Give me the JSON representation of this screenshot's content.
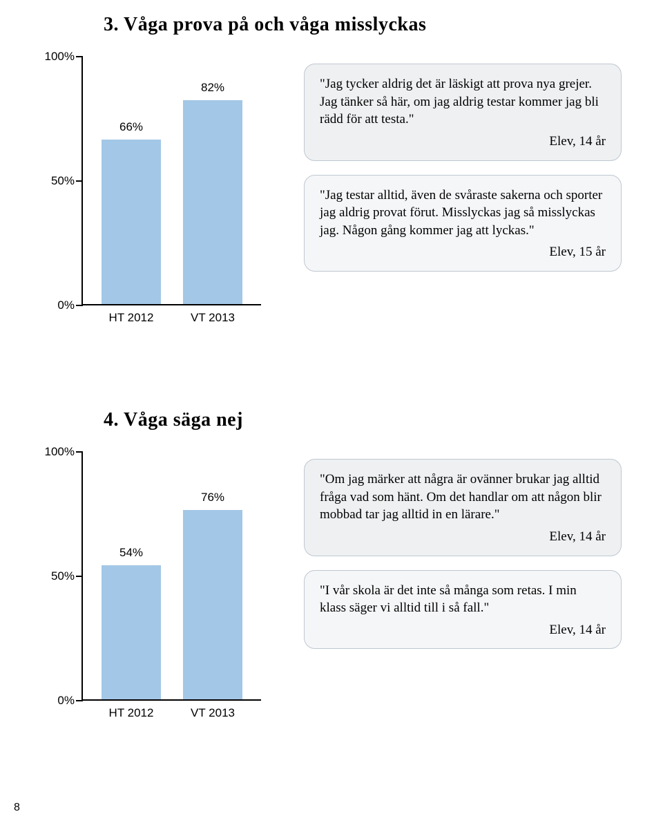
{
  "section1": {
    "heading": "3. Våga prova på och våga misslyckas",
    "chart": {
      "type": "bar",
      "ylim": [
        0,
        100
      ],
      "ytick_labels": [
        "100%",
        "50%",
        "0%"
      ],
      "ytick_values": [
        100,
        50,
        0
      ],
      "categories": [
        "HT 2012",
        "VT 2013"
      ],
      "values": [
        66,
        82
      ],
      "value_labels": [
        "66%",
        "82%"
      ],
      "bar_color": "#a3c7e6",
      "axis_color": "#000000",
      "label_fontsize": 17
    },
    "quotes": [
      {
        "text": "\"Jag tycker aldrig det är läskigt att prova nya grejer. Jag tänker så här, om jag aldrig testar kommer jag bli rädd för att testa.\"",
        "attrib": "Elev, 14 år",
        "bg": "#eef0f2"
      },
      {
        "text": "\"Jag testar alltid, även de svåraste sakerna och sporter jag aldrig provat förut. Misslyckas jag så misslyckas jag. Någon gång kommer jag att lyckas.\"",
        "attrib": "Elev, 15 år",
        "bg": "#f5f6f8"
      }
    ]
  },
  "section2": {
    "heading": "4. Våga säga nej",
    "chart": {
      "type": "bar",
      "ylim": [
        0,
        100
      ],
      "ytick_labels": [
        "100%",
        "50%",
        "0%"
      ],
      "ytick_values": [
        100,
        50,
        0
      ],
      "categories": [
        "HT 2012",
        "VT 2013"
      ],
      "values": [
        54,
        76
      ],
      "value_labels": [
        "54%",
        "76%"
      ],
      "bar_color": "#a3c7e6",
      "axis_color": "#000000",
      "label_fontsize": 17
    },
    "quotes": [
      {
        "text": "\"Om jag märker att några är ovänner brukar jag alltid fråga vad som hänt. Om det handlar om att någon blir mobbad tar jag alltid in en lärare.\"",
        "attrib": "Elev, 14 år",
        "bg": "#eef0f2"
      },
      {
        "text": "\"I vår skola är det inte så många som retas. I min klass säger vi alltid till i så fall.\"",
        "attrib": "Elev, 14 år",
        "bg": "#f5f6f8"
      }
    ]
  },
  "page_number": "8"
}
